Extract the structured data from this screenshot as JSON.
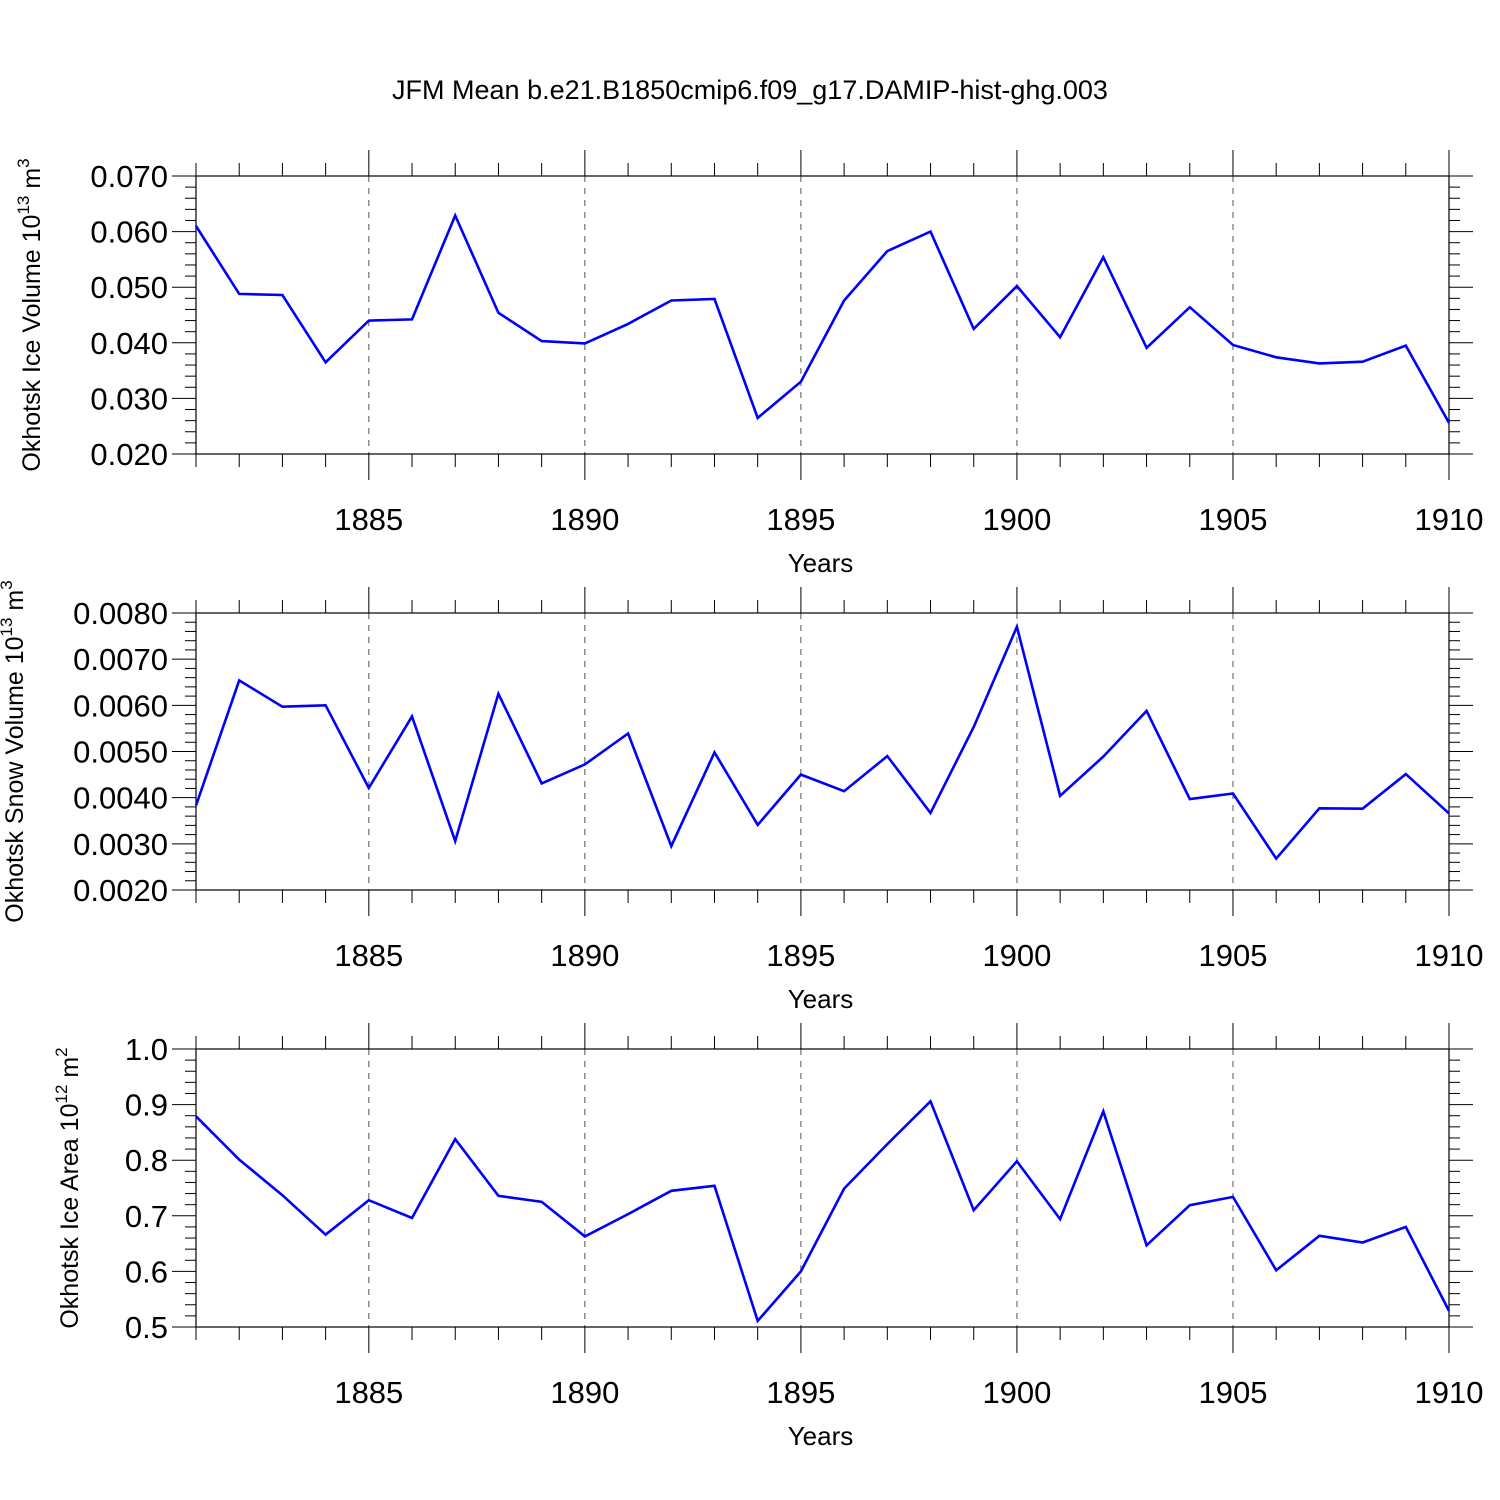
{
  "title": "JFM Mean b.e21.B1850cmip6.f09_g17.DAMIP-hist-ghg.003",
  "chart_data": [
    {
      "type": "line",
      "ylabel": "Okhotsk Ice Volume",
      "yunit_base": "10",
      "yunit_exp": "13",
      "yunit_name": "m",
      "yunit_power": "3",
      "xlabel": "Years",
      "xlim": [
        1881,
        1910
      ],
      "ylim": [
        0.02,
        0.07
      ],
      "yticks": [
        "0.020",
        "0.030",
        "0.040",
        "0.050",
        "0.060",
        "0.070"
      ],
      "xticks": [
        "1885",
        "1890",
        "1895",
        "1900",
        "1905",
        "1910"
      ],
      "line_color": "#0000ff",
      "x": [
        1881,
        1882,
        1883,
        1884,
        1885,
        1886,
        1887,
        1888,
        1889,
        1890,
        1891,
        1892,
        1893,
        1894,
        1895,
        1896,
        1897,
        1898,
        1899,
        1900,
        1901,
        1902,
        1903,
        1904,
        1905,
        1906,
        1907,
        1908,
        1909,
        1910
      ],
      "values": [
        0.061,
        0.0488,
        0.0486,
        0.0365,
        0.044,
        0.0442,
        0.0629,
        0.0454,
        0.0403,
        0.0399,
        0.0434,
        0.0476,
        0.0479,
        0.0265,
        0.033,
        0.0476,
        0.0565,
        0.06,
        0.0425,
        0.0502,
        0.041,
        0.0554,
        0.0391,
        0.0464,
        0.0396,
        0.0374,
        0.0363,
        0.0366,
        0.0395,
        0.0256
      ]
    },
    {
      "type": "line",
      "ylabel": "Okhotsk Snow Volume",
      "yunit_base": "10",
      "yunit_exp": "13",
      "yunit_name": "m",
      "yunit_power": "3",
      "xlabel": "Years",
      "xlim": [
        1881,
        1910
      ],
      "ylim": [
        0.002,
        0.008
      ],
      "yticks": [
        "0.0020",
        "0.0030",
        "0.0040",
        "0.0050",
        "0.0060",
        "0.0070",
        "0.0080"
      ],
      "xticks": [
        "1885",
        "1890",
        "1895",
        "1900",
        "1905",
        "1910"
      ],
      "line_color": "#0000ff",
      "x": [
        1881,
        1882,
        1883,
        1884,
        1885,
        1886,
        1887,
        1888,
        1889,
        1890,
        1891,
        1892,
        1893,
        1894,
        1895,
        1896,
        1897,
        1898,
        1899,
        1900,
        1901,
        1902,
        1903,
        1904,
        1905,
        1906,
        1907,
        1908,
        1909,
        1910
      ],
      "values": [
        0.00383,
        0.00654,
        0.00597,
        0.006,
        0.00421,
        0.00576,
        0.00306,
        0.00625,
        0.00431,
        0.00472,
        0.00539,
        0.00295,
        0.00498,
        0.00341,
        0.0045,
        0.00414,
        0.0049,
        0.00367,
        0.00553,
        0.0077,
        0.00404,
        0.00489,
        0.00588,
        0.00397,
        0.00409,
        0.00268,
        0.00377,
        0.00376,
        0.00451,
        0.00366
      ]
    },
    {
      "type": "line",
      "ylabel": "Okhotsk Ice Area",
      "yunit_base": "10",
      "yunit_exp": "12",
      "yunit_name": "m",
      "yunit_power": "2",
      "xlabel": "Years",
      "xlim": [
        1881,
        1910
      ],
      "ylim": [
        0.5,
        1.0
      ],
      "yticks": [
        "0.5",
        "0.6",
        "0.7",
        "0.8",
        "0.9",
        "1.0"
      ],
      "xticks": [
        "1885",
        "1890",
        "1895",
        "1900",
        "1905",
        "1910"
      ],
      "line_color": "#0000ff",
      "x": [
        1881,
        1882,
        1883,
        1884,
        1885,
        1886,
        1887,
        1888,
        1889,
        1890,
        1891,
        1892,
        1893,
        1894,
        1895,
        1896,
        1897,
        1898,
        1899,
        1900,
        1901,
        1902,
        1903,
        1904,
        1905,
        1906,
        1907,
        1908,
        1909,
        1910
      ],
      "values": [
        0.879,
        0.801,
        0.737,
        0.666,
        0.728,
        0.696,
        0.838,
        0.736,
        0.725,
        0.663,
        0.703,
        0.745,
        0.754,
        0.511,
        0.6,
        0.749,
        0.829,
        0.906,
        0.71,
        0.798,
        0.694,
        0.888,
        0.647,
        0.719,
        0.734,
        0.602,
        0.664,
        0.652,
        0.68,
        0.529
      ]
    }
  ]
}
